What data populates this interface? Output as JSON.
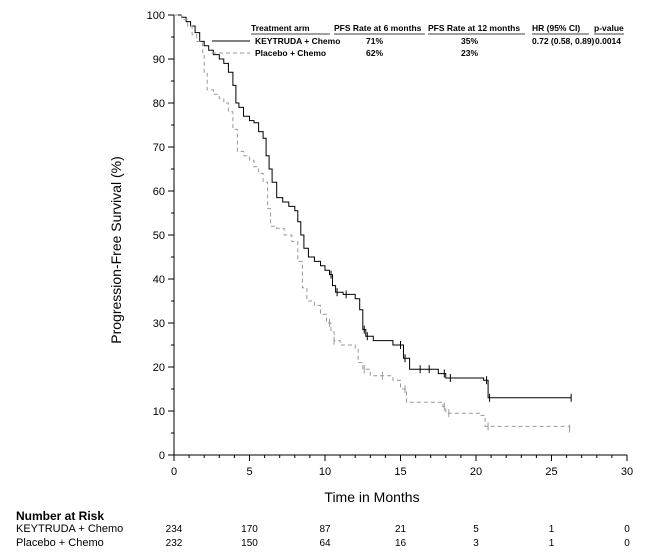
{
  "chart_data": {
    "type": "line",
    "step": true,
    "xlabel": "Time in Months",
    "ylabel": "Progression-Free Survival (%)",
    "xlim": [
      0,
      30
    ],
    "ylim": [
      0,
      100
    ],
    "x_ticks": [
      0,
      5,
      10,
      15,
      20,
      25,
      30
    ],
    "y_ticks": [
      0,
      10,
      20,
      30,
      40,
      50,
      60,
      70,
      80,
      90,
      100
    ],
    "grid": false,
    "legend_placement": "top-right",
    "legend": {
      "header": [
        "Treatment arm",
        "PFS Rate at 6 months",
        "PFS Rate at 12 months",
        "HR (95% CI)",
        "p-value"
      ],
      "rows": [
        [
          "KEYTRUDA + Chemo",
          "71%",
          "35%",
          "0.72 (0.58, 0.89)",
          "0.0014"
        ],
        [
          "Placebo + Chemo",
          "62%",
          "23%",
          "",
          ""
        ]
      ]
    },
    "series": [
      {
        "name": "KEYTRUDA + Chemo",
        "color": "#000000",
        "dash": "solid",
        "points": [
          [
            0,
            100
          ],
          [
            0.5,
            99.5
          ],
          [
            0.8,
            98.5
          ],
          [
            1.1,
            97.5
          ],
          [
            1.4,
            96
          ],
          [
            1.7,
            94
          ],
          [
            2.0,
            93
          ],
          [
            2.3,
            92
          ],
          [
            2.6,
            91
          ],
          [
            3.0,
            90
          ],
          [
            3.3,
            89
          ],
          [
            3.6,
            87
          ],
          [
            3.9,
            84
          ],
          [
            4.1,
            80
          ],
          [
            4.3,
            79
          ],
          [
            4.6,
            77
          ],
          [
            5.0,
            76
          ],
          [
            5.3,
            75.5
          ],
          [
            5.6,
            73.5
          ],
          [
            5.9,
            72
          ],
          [
            6.1,
            68
          ],
          [
            6.3,
            65
          ],
          [
            6.5,
            62
          ],
          [
            6.8,
            58.5
          ],
          [
            7.2,
            57.5
          ],
          [
            7.6,
            56.5
          ],
          [
            8.0,
            55.5
          ],
          [
            8.2,
            53
          ],
          [
            8.4,
            50
          ],
          [
            8.6,
            47
          ],
          [
            8.9,
            45
          ],
          [
            9.3,
            44
          ],
          [
            9.7,
            43
          ],
          [
            10.0,
            42
          ],
          [
            10.3,
            41
          ],
          [
            10.5,
            38.5
          ],
          [
            10.7,
            37
          ],
          [
            11.2,
            36.5
          ],
          [
            12.0,
            35.5
          ],
          [
            12.3,
            33
          ],
          [
            12.5,
            28.5
          ],
          [
            12.7,
            27
          ],
          [
            13.2,
            26
          ],
          [
            14.5,
            25
          ],
          [
            15.2,
            22
          ],
          [
            15.6,
            19.5
          ],
          [
            17.5,
            18.5
          ],
          [
            18.0,
            17.5
          ],
          [
            20.5,
            17
          ],
          [
            20.8,
            13
          ],
          [
            26.3,
            13
          ]
        ],
        "censor_x": [
          10.4,
          10.8,
          11.4,
          12.6,
          12.8,
          15.0,
          15.3,
          16.3,
          16.9,
          17.9,
          18.3,
          20.7,
          20.9,
          26.3
        ]
      },
      {
        "name": "Placebo + Chemo",
        "color": "#999999",
        "dash": "dashed",
        "points": [
          [
            0,
            100
          ],
          [
            0.5,
            99
          ],
          [
            0.9,
            97.5
          ],
          [
            1.2,
            95.5
          ],
          [
            1.5,
            94
          ],
          [
            1.9,
            91
          ],
          [
            2.0,
            87
          ],
          [
            2.2,
            83
          ],
          [
            2.6,
            82
          ],
          [
            3.0,
            81
          ],
          [
            3.3,
            80
          ],
          [
            3.6,
            78
          ],
          [
            3.9,
            74
          ],
          [
            4.2,
            69
          ],
          [
            4.6,
            68
          ],
          [
            5.0,
            67
          ],
          [
            5.3,
            65.5
          ],
          [
            5.6,
            64
          ],
          [
            5.9,
            62
          ],
          [
            6.2,
            56
          ],
          [
            6.4,
            52
          ],
          [
            6.8,
            51.5
          ],
          [
            7.3,
            50
          ],
          [
            7.8,
            48.5
          ],
          [
            8.2,
            44
          ],
          [
            8.5,
            38
          ],
          [
            8.8,
            35
          ],
          [
            9.3,
            34
          ],
          [
            9.7,
            32
          ],
          [
            10.1,
            30
          ],
          [
            10.4,
            28
          ],
          [
            10.6,
            26
          ],
          [
            11.0,
            25
          ],
          [
            12.0,
            24
          ],
          [
            12.2,
            21
          ],
          [
            12.5,
            19.5
          ],
          [
            13.0,
            18
          ],
          [
            14.5,
            17
          ],
          [
            15.0,
            15
          ],
          [
            15.4,
            12
          ],
          [
            17.8,
            11
          ],
          [
            18.0,
            9.5
          ],
          [
            20.3,
            9
          ],
          [
            20.6,
            6.5
          ],
          [
            26.2,
            6
          ]
        ],
        "censor_x": [
          10.3,
          10.6,
          12.6,
          13.8,
          15.3,
          17.9,
          18.2,
          20.8,
          26.2
        ]
      }
    ],
    "risk_table": {
      "title": "Number at Risk",
      "times": [
        0,
        5,
        10,
        15,
        20,
        25,
        30
      ],
      "rows": [
        {
          "label": "KEYTRUDA + Chemo",
          "values": [
            234,
            170,
            87,
            21,
            5,
            1,
            0
          ]
        },
        {
          "label": "Placebo + Chemo",
          "values": [
            232,
            150,
            64,
            16,
            3,
            1,
            0
          ]
        }
      ]
    }
  }
}
